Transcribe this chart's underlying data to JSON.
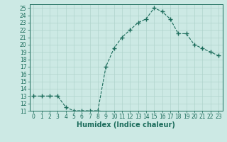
{
  "x": [
    0,
    1,
    2,
    3,
    4,
    5,
    6,
    7,
    8,
    9,
    10,
    11,
    12,
    13,
    14,
    15,
    16,
    17,
    18,
    19,
    20,
    21,
    22,
    23
  ],
  "y": [
    13,
    13,
    13,
    13,
    11.5,
    11,
    11,
    11,
    11,
    17,
    19.5,
    21,
    22,
    23,
    23.5,
    25,
    24.5,
    23.5,
    21.5,
    21.5,
    20,
    19.5,
    19,
    18.5
  ],
  "line_color": "#1a6b5a",
  "marker": "+",
  "marker_size": 4,
  "bg_color": "#cce9e4",
  "grid_color": "#b0d4cc",
  "xlabel": "Humidex (Indice chaleur)",
  "xlim": [
    -0.5,
    23.5
  ],
  "ylim": [
    11,
    25.5
  ],
  "yticks": [
    11,
    12,
    13,
    14,
    15,
    16,
    17,
    18,
    19,
    20,
    21,
    22,
    23,
    24,
    25
  ],
  "xticks": [
    0,
    1,
    2,
    3,
    4,
    5,
    6,
    7,
    8,
    9,
    10,
    11,
    12,
    13,
    14,
    15,
    16,
    17,
    18,
    19,
    20,
    21,
    22,
    23
  ],
  "tick_fontsize": 5.5,
  "xlabel_fontsize": 7
}
